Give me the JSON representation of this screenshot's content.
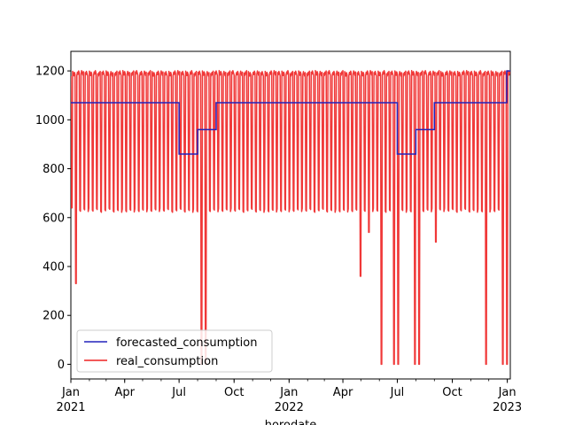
{
  "chart_data": {
    "type": "line",
    "title": "",
    "xlabel": "horodate",
    "ylabel": "",
    "xlim": [
      "2021-01-01",
      "2023-01-06"
    ],
    "ylim": [
      -60,
      1280
    ],
    "grid": false,
    "legend_position": "lower-left",
    "y_ticks": [
      0,
      200,
      400,
      600,
      800,
      1000,
      1200
    ],
    "x_ticks": [
      {
        "date": "2021-01-01",
        "label": "Jan",
        "year": "2021"
      },
      {
        "date": "2021-04-01",
        "label": "Apr",
        "year": ""
      },
      {
        "date": "2021-07-01",
        "label": "Jul",
        "year": ""
      },
      {
        "date": "2021-10-01",
        "label": "Oct",
        "year": ""
      },
      {
        "date": "2022-01-01",
        "label": "Jan",
        "year": "2022"
      },
      {
        "date": "2022-04-01",
        "label": "Apr",
        "year": ""
      },
      {
        "date": "2022-07-01",
        "label": "Jul",
        "year": ""
      },
      {
        "date": "2022-10-01",
        "label": "Oct",
        "year": ""
      },
      {
        "date": "2023-01-01",
        "label": "Jan",
        "year": "2023"
      }
    ],
    "series": [
      {
        "name": "forecasted_consumption",
        "color": "#2222bb",
        "style": "step",
        "points": [
          [
            "2021-01-01",
            1070
          ],
          [
            "2021-07-01",
            1070
          ],
          [
            "2021-07-01",
            860
          ],
          [
            "2021-08-01",
            860
          ],
          [
            "2021-08-01",
            960
          ],
          [
            "2021-09-01",
            960
          ],
          [
            "2021-09-01",
            1070
          ],
          [
            "2022-07-01",
            1070
          ],
          [
            "2022-07-01",
            860
          ],
          [
            "2022-08-01",
            860
          ],
          [
            "2022-08-01",
            960
          ],
          [
            "2022-09-01",
            960
          ],
          [
            "2022-09-01",
            1070
          ],
          [
            "2022-12-31",
            1070
          ],
          [
            "2022-12-31",
            1200
          ],
          [
            "2023-01-06",
            1200
          ]
        ]
      },
      {
        "name": "real_consumption",
        "color": "#ee2222",
        "style": "line",
        "pattern": {
          "start": "2021-01-01",
          "end": "2023-01-06",
          "period_days": 7,
          "high": 1190,
          "weekend_dips": [
            {
              "date": "2021-01-03",
              "value": 640
            },
            {
              "date": "2021-01-10",
              "value": 330
            },
            {
              "date": "2021-08-08",
              "value": 0
            },
            {
              "date": "2021-08-15",
              "value": 0
            },
            {
              "date": "2022-05-01",
              "value": 360
            },
            {
              "date": "2022-05-15",
              "value": 540
            },
            {
              "date": "2022-06-05",
              "value": 0
            },
            {
              "date": "2022-06-26",
              "value": 0
            },
            {
              "date": "2022-07-03",
              "value": 0
            },
            {
              "date": "2022-07-31",
              "value": 0
            },
            {
              "date": "2022-08-07",
              "value": 0
            },
            {
              "date": "2022-09-04",
              "value": 500
            },
            {
              "date": "2022-11-27",
              "value": 0
            },
            {
              "date": "2022-12-25",
              "value": 0
            },
            {
              "date": "2023-01-01",
              "value": 0
            }
          ],
          "default_dip": 630
        }
      }
    ]
  }
}
